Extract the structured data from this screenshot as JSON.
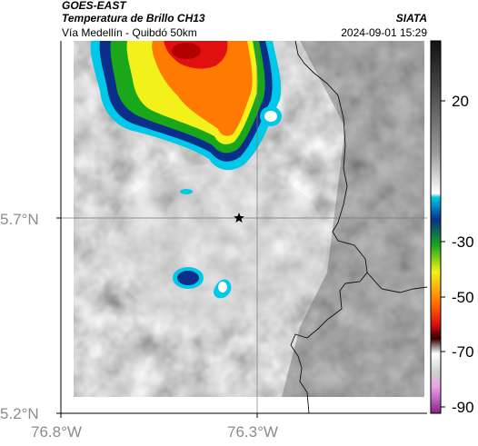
{
  "header": {
    "satellite": "GOES-EAST",
    "product": "Temperatura de Brillo CH13",
    "route": "Vía Medellín - Quibdó 50km",
    "organization": "SIATA",
    "datetime": "2024-09-01 15:29"
  },
  "map": {
    "latitude_labels": [
      "5.7°N",
      "5.2°N"
    ],
    "longitude_labels": [
      "76.8°W",
      "76.3°W"
    ],
    "marker": "star-marker",
    "background": "grayscale brightness temperature with colored cold cloud tops"
  },
  "colorbar": {
    "ticks": [
      "20",
      "-30",
      "-50",
      "-70",
      "-90"
    ],
    "colors": {
      "warm_black": "#111111",
      "gray": "#9a9a9a",
      "white": "#ffffff",
      "cyan": "#00c8e8",
      "blue": "#0a2f8a",
      "green": "#1aa81a",
      "yellow": "#f2f21a",
      "orange": "#ff7a00",
      "red": "#e01010",
      "magenta": "#b040b0"
    }
  }
}
